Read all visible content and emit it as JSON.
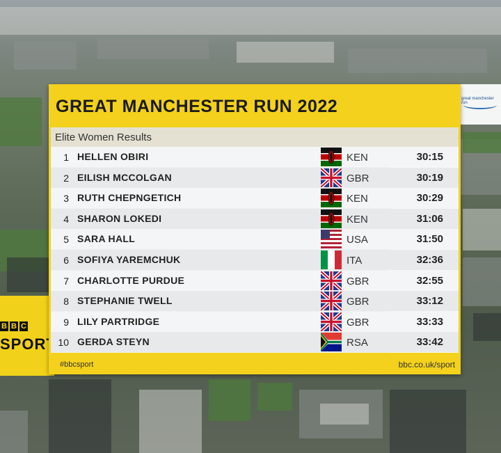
{
  "title": "GREAT MANCHESTER RUN 2022",
  "subtitle": "Elite Women Results",
  "logo_text": "great manchester run",
  "bbc_letters": [
    "B",
    "B",
    "C"
  ],
  "sport_word": "SPORT",
  "hashtag": "#bbcsport",
  "url": "bbc.co.uk/sport",
  "colors": {
    "board_yellow": "#f3d11c",
    "row_light": "#f4f5f6",
    "row_dark": "#e7e9eb"
  },
  "results": [
    {
      "pos": "1",
      "name": "HELLEN OBIRI",
      "country": "KEN",
      "time": "30:15",
      "flag": "kenya-flag-icon"
    },
    {
      "pos": "2",
      "name": "EILISH MCCOLGAN",
      "country": "GBR",
      "time": "30:19",
      "flag": "uk-flag-icon"
    },
    {
      "pos": "3",
      "name": "RUTH CHEPNGETICH",
      "country": "KEN",
      "time": "30:29",
      "flag": "kenya-flag-icon"
    },
    {
      "pos": "4",
      "name": "SHARON LOKEDI",
      "country": "KEN",
      "time": "31:06",
      "flag": "kenya-flag-icon"
    },
    {
      "pos": "5",
      "name": "SARA HALL",
      "country": "USA",
      "time": "31:50",
      "flag": "usa-flag-icon"
    },
    {
      "pos": "6",
      "name": "SOFIYA YAREMCHUK",
      "country": "ITA",
      "time": "32:36",
      "flag": "italy-flag-icon"
    },
    {
      "pos": "7",
      "name": "CHARLOTTE PURDUE",
      "country": "GBR",
      "time": "32:55",
      "flag": "uk-flag-icon"
    },
    {
      "pos": "8",
      "name": "STEPHANIE TWELL",
      "country": "GBR",
      "time": "33:12",
      "flag": "uk-flag-icon"
    },
    {
      "pos": "9",
      "name": "LILY PARTRIDGE",
      "country": "GBR",
      "time": "33:33",
      "flag": "uk-flag-icon"
    },
    {
      "pos": "10",
      "name": "GERDA STEYN",
      "country": "RSA",
      "time": "33:42",
      "flag": "south-africa-flag-icon"
    }
  ]
}
